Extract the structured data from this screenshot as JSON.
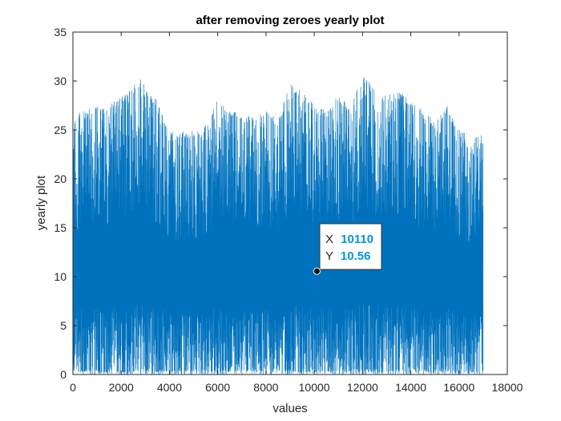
{
  "chart_data": {
    "type": "line",
    "title": "after removing zeroes yearly plot",
    "xlabel": "values",
    "ylabel": "yearly plot",
    "xlim": [
      0,
      18000
    ],
    "ylim": [
      0,
      35
    ],
    "xticks": [
      0,
      2000,
      4000,
      6000,
      8000,
      10000,
      12000,
      14000,
      16000,
      18000
    ],
    "yticks": [
      0,
      5,
      10,
      15,
      20,
      25,
      30,
      35
    ],
    "grid": false,
    "series": [
      {
        "color": "#0072BD",
        "n_points": 17000,
        "x_range": [
          1,
          17000
        ],
        "y_range": [
          0,
          30.5
        ],
        "upper_envelope": {
          "x": [
            0,
            500,
            1000,
            1500,
            2000,
            2500,
            2800,
            3000,
            3500,
            3800,
            4000,
            4500,
            5000,
            5500,
            6000,
            6500,
            7000,
            7500,
            8000,
            8500,
            9000,
            9500,
            10000,
            10500,
            11000,
            11500,
            12000,
            12500,
            13000,
            13500,
            14000,
            14500,
            15000,
            15500,
            16000,
            16500,
            17000
          ],
          "y": [
            26.5,
            27.0,
            27.5,
            27.5,
            28.5,
            29.5,
            30.5,
            29.5,
            28.0,
            26.0,
            25.0,
            24.8,
            25.0,
            25.5,
            28.5,
            27.0,
            26.5,
            26.5,
            27.0,
            26.0,
            29.8,
            29.0,
            27.5,
            27.0,
            28.5,
            27.5,
            30.5,
            29.5,
            28.5,
            29.0,
            28.0,
            27.0,
            26.0,
            27.5,
            25.0,
            24.5,
            24.5
          ]
        }
      }
    ],
    "datatip": {
      "x_label": "X",
      "x_value": "10110",
      "y_label": "Y",
      "y_value": "10.56",
      "x": 10110,
      "y": 10.56
    }
  }
}
